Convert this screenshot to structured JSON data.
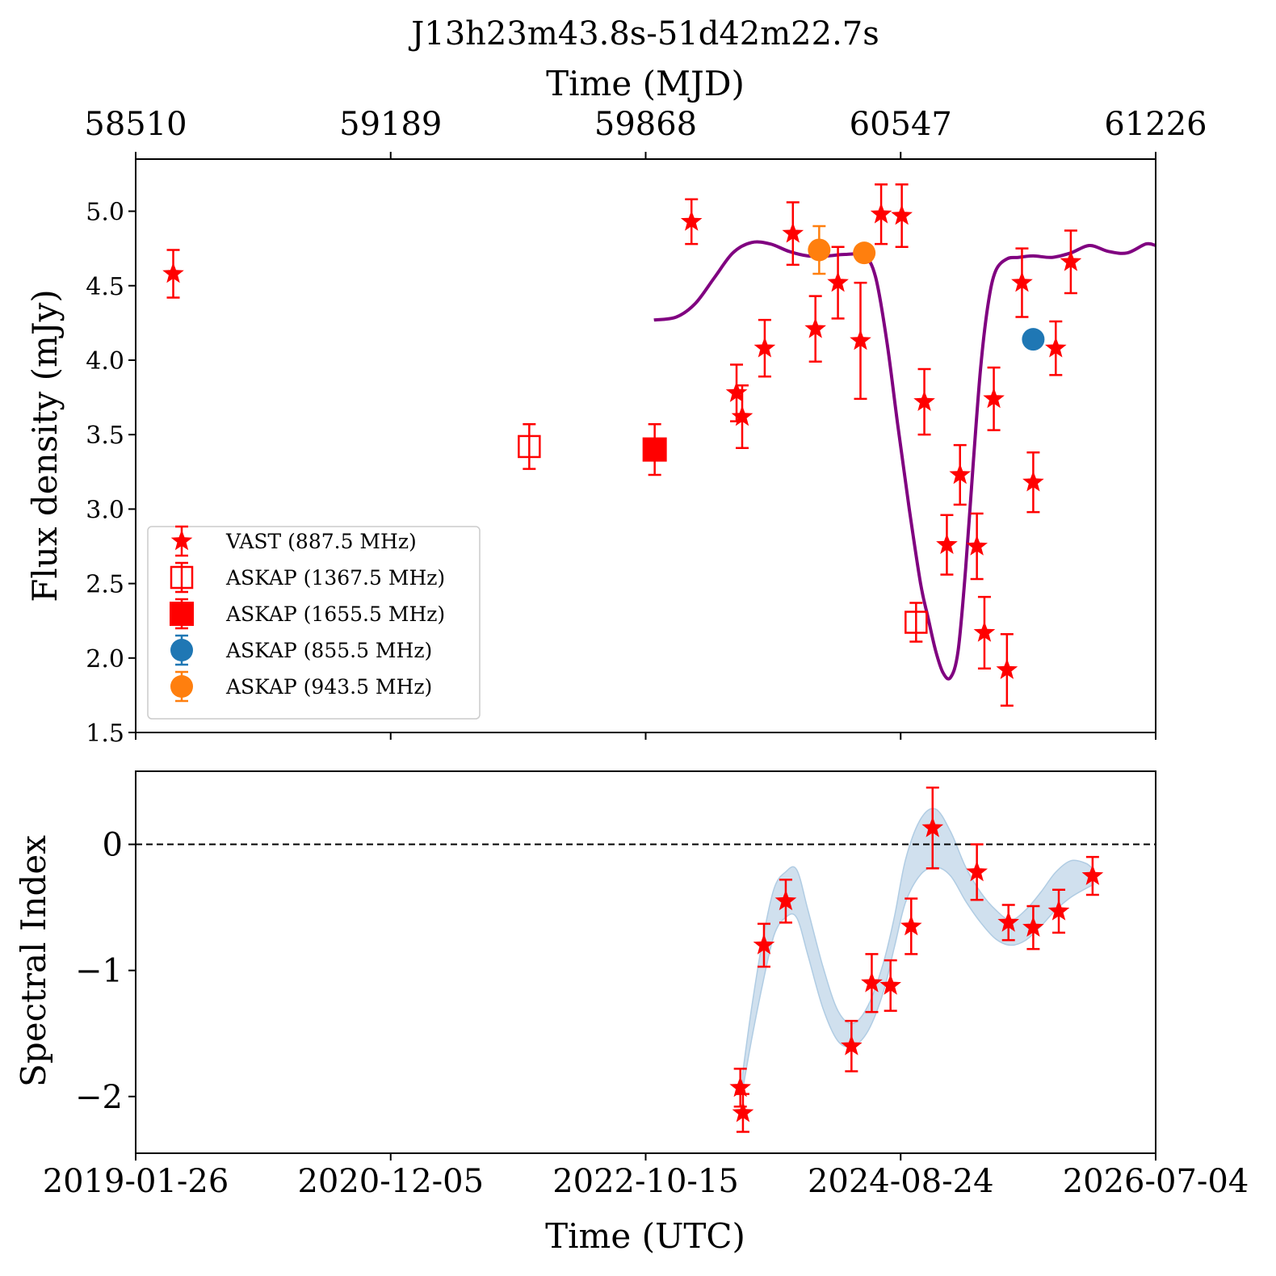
{
  "colors": {
    "vast": "#ff0000",
    "askap_1367": "#ff0000",
    "askap_1655": "#ff0000",
    "askap_855": "#1f77b4",
    "askap_943": "#ff7f0e",
    "model_curve": "#800080",
    "band_fill": "#b0cce3",
    "zero_line": "#000000"
  },
  "chart_data": [
    {
      "type": "scatter",
      "panel": "flux",
      "title": "J13h23m43.8s-51d42m22.7s",
      "top_xlabel": "Time (MJD)",
      "ylabel": "Flux density (mJy)",
      "xlim_mjd": [
        58510,
        61226
      ],
      "ylim": [
        1.5,
        5.35
      ],
      "top_ticks_mjd": [
        "58510",
        "59189",
        "59868",
        "60547",
        "61226"
      ],
      "yticks": [
        "1.5",
        "2.0",
        "2.5",
        "3.0",
        "3.5",
        "4.0",
        "4.5",
        "5.0"
      ],
      "legend_placement": "lower-left",
      "series": [
        {
          "name": "VAST (887.5 MHz)",
          "marker": "star",
          "x_mjd": [
            58610,
            59990,
            60750,
            60770,
            60830,
            60900,
            60960,
            61000,
            60870,
            60795,
            60705,
            60670,
            60610,
            60550,
            60495,
            60440,
            60380,
            60320,
            60260,
            60185,
            60125,
            60110
          ],
          "y": [
            4.58,
            4.93,
            2.75,
            2.17,
            1.92,
            3.18,
            4.08,
            4.66,
            4.52,
            3.74,
            3.23,
            2.76,
            3.72,
            4.97,
            4.98,
            4.13,
            4.52,
            4.21,
            4.85,
            4.08,
            3.62,
            3.78
          ],
          "yerr": [
            0.16,
            0.15,
            0.22,
            0.24,
            0.24,
            0.2,
            0.18,
            0.21,
            0.23,
            0.21,
            0.2,
            0.2,
            0.22,
            0.21,
            0.2,
            0.39,
            0.24,
            0.22,
            0.21,
            0.19,
            0.21,
            0.19
          ]
        },
        {
          "name": "ASKAP (1367.5 MHz)",
          "marker": "open-square",
          "x_mjd": [
            59558,
            60588
          ],
          "y": [
            3.42,
            2.24
          ],
          "yerr": [
            0.15,
            0.13
          ]
        },
        {
          "name": "ASKAP (1655.5 MHz)",
          "marker": "filled-square",
          "x_mjd": [
            59892
          ],
          "y": [
            3.4
          ],
          "yerr": [
            0.17
          ]
        },
        {
          "name": "ASKAP (855.5 MHz)",
          "marker": "circle",
          "x_mjd": [
            60900
          ],
          "y": [
            4.14
          ],
          "yerr": [
            0.03
          ]
        },
        {
          "name": "ASKAP (943.5 MHz)",
          "marker": "circle",
          "x_mjd": [
            60330,
            60450
          ],
          "y": [
            4.74,
            4.72
          ],
          "yerr": [
            0.16,
            0.05
          ]
        }
      ],
      "model_curve": {
        "x_mjd": [
          59890,
          59950,
          60000,
          60050,
          60100,
          60150,
          60200,
          60250,
          60300,
          60350,
          60400,
          60450,
          60480,
          60510,
          60540,
          60570,
          60600,
          60620,
          60640,
          60660,
          60680,
          60700,
          60720,
          60740,
          60760,
          60780,
          60800,
          60830,
          60860,
          60900,
          60950,
          61000,
          61050,
          61100,
          61150,
          61200,
          61226
        ],
        "y": [
          4.27,
          4.29,
          4.38,
          4.55,
          4.72,
          4.79,
          4.78,
          4.73,
          4.7,
          4.7,
          4.71,
          4.7,
          4.56,
          4.13,
          3.55,
          3.0,
          2.5,
          2.27,
          2.05,
          1.9,
          1.87,
          2.05,
          2.6,
          3.3,
          3.95,
          4.38,
          4.6,
          4.68,
          4.69,
          4.7,
          4.69,
          4.72,
          4.77,
          4.73,
          4.72,
          4.78,
          4.77
        ]
      }
    },
    {
      "type": "scatter",
      "panel": "spectral-index",
      "xlabel": "Time (UTC)",
      "ylabel": "Spectral Index",
      "xlim_mjd": [
        58510,
        61226
      ],
      "ylim": [
        -2.45,
        0.58
      ],
      "xticks_utc": [
        "2019-01-26",
        "2020-12-05",
        "2022-10-15",
        "2024-08-24",
        "2026-07-04"
      ],
      "yticks": [
        "−2",
        "−1",
        "0"
      ],
      "reference_line_y": 0,
      "series": [
        {
          "name": "VAST",
          "marker": "star",
          "x_mjd": [
            60120,
            60127,
            60183,
            60241,
            60416,
            60470,
            60520,
            60575,
            60632,
            60750,
            60834,
            60900,
            60968,
            61058
          ],
          "y": [
            -1.93,
            -2.13,
            -0.8,
            -0.45,
            -1.6,
            -1.1,
            -1.12,
            -0.65,
            0.13,
            -0.22,
            -0.62,
            -0.66,
            -0.53,
            -0.25
          ],
          "yerr": [
            0.15,
            0.15,
            0.17,
            0.17,
            0.2,
            0.23,
            0.2,
            0.22,
            0.32,
            0.22,
            0.14,
            0.17,
            0.17,
            0.15
          ]
        }
      ],
      "band": {
        "x_mjd": [
          60126,
          60150,
          60180,
          60210,
          60240,
          60270,
          60300,
          60340,
          60380,
          60420,
          60460,
          60500,
          60530,
          60560,
          60600,
          60640,
          60680,
          60720,
          60760,
          60800,
          60840,
          60880,
          60920,
          60960,
          61000,
          61040,
          61060
        ],
        "upper": [
          -1.82,
          -1.3,
          -0.75,
          -0.35,
          -0.22,
          -0.2,
          -0.52,
          -0.97,
          -1.32,
          -1.42,
          -1.28,
          -0.95,
          -0.58,
          -0.12,
          0.2,
          0.28,
          0.1,
          -0.18,
          -0.38,
          -0.52,
          -0.6,
          -0.52,
          -0.38,
          -0.22,
          -0.13,
          -0.15,
          -0.2
        ],
        "lower": [
          -1.95,
          -1.55,
          -1.1,
          -0.72,
          -0.58,
          -0.58,
          -0.88,
          -1.3,
          -1.56,
          -1.6,
          -1.48,
          -1.18,
          -0.82,
          -0.46,
          -0.24,
          -0.18,
          -0.25,
          -0.45,
          -0.62,
          -0.75,
          -0.8,
          -0.76,
          -0.65,
          -0.52,
          -0.42,
          -0.35,
          -0.32
        ]
      }
    }
  ]
}
